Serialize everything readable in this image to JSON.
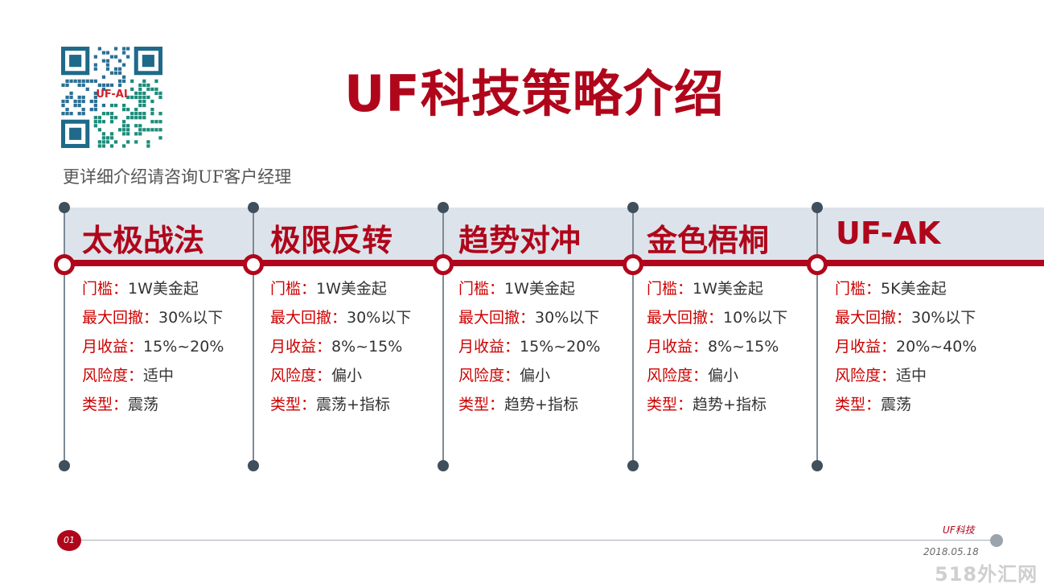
{
  "header": {
    "title": "UF科技策略介绍",
    "subtitle": "更详细介绍请咨询UF客户经理",
    "qr_label": "UF-AI"
  },
  "columns": [
    {
      "title": "太极战法",
      "rows": [
        {
          "key": "门槛",
          "value": "1W美金起"
        },
        {
          "key": "最大回撤",
          "value": "30%以下"
        },
        {
          "key": "月收益",
          "value": "15%~20%"
        },
        {
          "key": "风险度",
          "value": "适中"
        },
        {
          "key": "类型",
          "value": "震荡"
        }
      ]
    },
    {
      "title": "极限反转",
      "rows": [
        {
          "key": "门槛",
          "value": "1W美金起"
        },
        {
          "key": "最大回撤",
          "value": "30%以下"
        },
        {
          "key": "月收益",
          "value": "8%~15%"
        },
        {
          "key": "风险度",
          "value": "偏小"
        },
        {
          "key": "类型",
          "value": "震荡+指标"
        }
      ]
    },
    {
      "title": "趋势对冲",
      "rows": [
        {
          "key": "门槛",
          "value": "1W美金起"
        },
        {
          "key": "最大回撤",
          "value": "30%以下"
        },
        {
          "key": "月收益",
          "value": "15%~20%"
        },
        {
          "key": "风险度",
          "value": "偏小"
        },
        {
          "key": "类型",
          "value": "趋势+指标"
        }
      ]
    },
    {
      "title": "金色梧桐",
      "rows": [
        {
          "key": "门槛",
          "value": "1W美金起"
        },
        {
          "key": "最大回撤",
          "value": "10%以下"
        },
        {
          "key": "月收益",
          "value": "8%~15%"
        },
        {
          "key": "风险度",
          "value": "偏小"
        },
        {
          "key": "类型",
          "value": "趋势+指标"
        }
      ]
    },
    {
      "title": "UF-AK",
      "rows": [
        {
          "key": "门槛",
          "value": "5K美金起"
        },
        {
          "key": "最大回撤",
          "value": "30%以下"
        },
        {
          "key": "月收益",
          "value": "20%~40%"
        },
        {
          "key": "风险度",
          "value": "适中"
        },
        {
          "key": "类型",
          "value": "震荡"
        }
      ]
    }
  ],
  "separator": "：",
  "footer": {
    "page": "01",
    "brand": "UF科技",
    "date": "2018.05.18",
    "watermark": "518外汇网"
  },
  "colors": {
    "accent_red": "#b0061b",
    "key_red": "#cc0000",
    "band": "#dde3ea",
    "node_dark": "#3f4f5c"
  }
}
